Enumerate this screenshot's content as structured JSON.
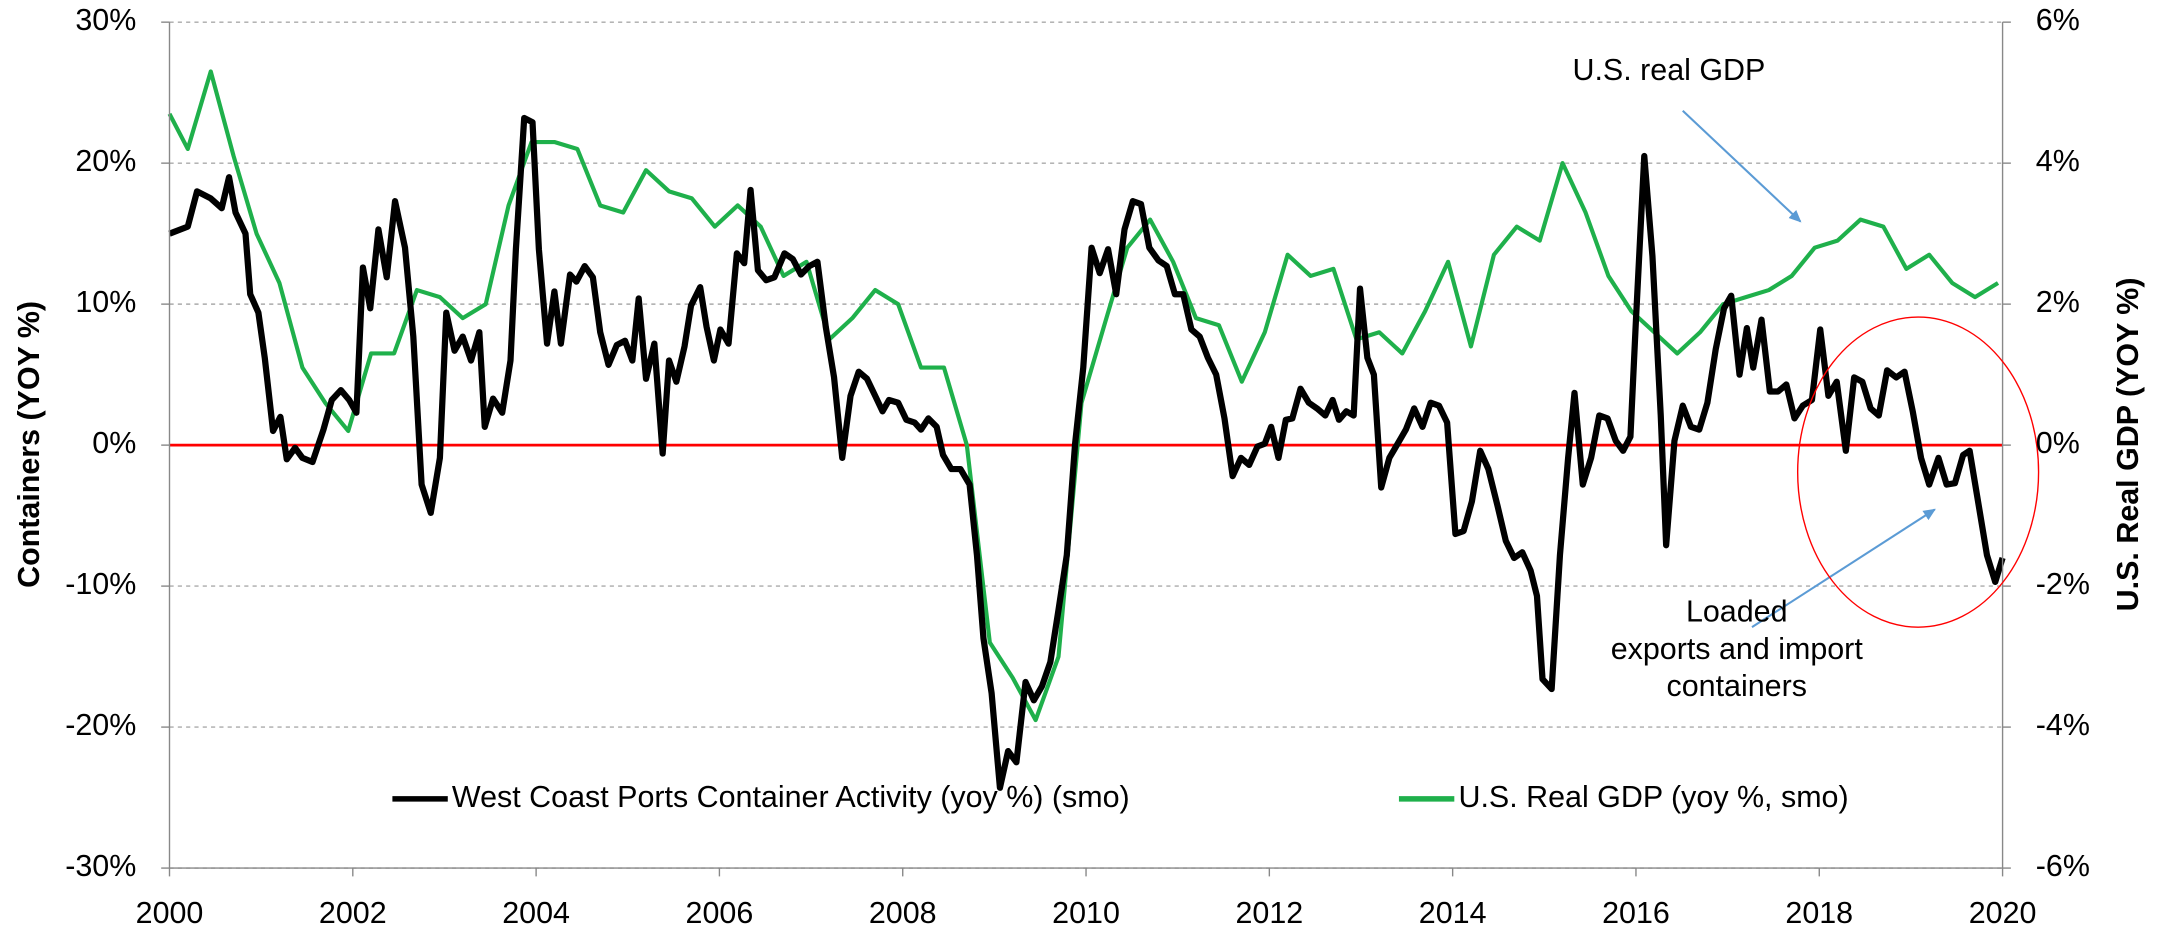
{
  "chart_data": {
    "type": "line",
    "y_label": "Containers (YOY %)",
    "y2_label": "U.S. Real GDP (YOY %)",
    "xlim": [
      2000,
      2020
    ],
    "xticks": [
      2000,
      2002,
      2004,
      2006,
      2008,
      2010,
      2012,
      2014,
      2016,
      2018,
      2020
    ],
    "ylim": [
      -30,
      30
    ],
    "yticks": [
      {
        "value": -30,
        "label": "-30%"
      },
      {
        "value": -20,
        "label": "-20%"
      },
      {
        "value": -10,
        "label": "-10%"
      },
      {
        "value": 0,
        "label": "0%"
      },
      {
        "value": 10,
        "label": "10%"
      },
      {
        "value": 20,
        "label": "20%"
      },
      {
        "value": 30,
        "label": "30%"
      }
    ],
    "y2lim": [
      -6,
      6
    ],
    "y2ticks": [
      {
        "value": -6,
        "label": "-6%"
      },
      {
        "value": -4,
        "label": "-4%"
      },
      {
        "value": -2,
        "label": "-2%"
      },
      {
        "value": 0,
        "label": "0%"
      },
      {
        "value": 2,
        "label": "2%"
      },
      {
        "value": 4,
        "label": "4%"
      },
      {
        "value": 6,
        "label": "6%"
      }
    ],
    "grid": true,
    "zero_line_color": "#ff0000",
    "legend": "lower center",
    "annotations": [
      {
        "lines": [
          "U.S. real GDP"
        ]
      },
      {
        "lines": [
          "Loaded",
          "exports and import",
          "containers"
        ]
      }
    ],
    "series": [
      {
        "name": "West Coast Ports Container Activity (yoy %) (smo)",
        "color": "#000000",
        "axis": "y",
        "x": [
          2000.0,
          2000.2,
          2000.3,
          2000.45,
          2000.57,
          2000.65,
          2000.72,
          2000.83,
          2000.88,
          2000.97,
          2001.04,
          2001.13,
          2001.21,
          2001.28,
          2001.37,
          2001.45,
          2001.56,
          2001.68,
          2001.77,
          2001.87,
          2001.96,
          2002.04,
          2002.11,
          2002.19,
          2002.28,
          2002.37,
          2002.46,
          2002.57,
          2002.66,
          2002.75,
          2002.85,
          2002.95,
          2003.02,
          2003.11,
          2003.2,
          2003.29,
          2003.38,
          2003.44,
          2003.53,
          2003.63,
          2003.72,
          2003.78,
          2003.87,
          2003.96,
          2004.03,
          2004.12,
          2004.2,
          2004.27,
          2004.37,
          2004.44,
          2004.53,
          2004.62,
          2004.7,
          2004.79,
          2004.88,
          2004.97,
          2005.05,
          2005.12,
          2005.2,
          2005.29,
          2005.38,
          2005.45,
          2005.53,
          2005.62,
          2005.69,
          2005.79,
          2005.86,
          2005.94,
          2006.01,
          2006.1,
          2006.19,
          2006.27,
          2006.34,
          2006.42,
          2006.51,
          2006.6,
          2006.71,
          2006.8,
          2006.89,
          2006.98,
          2007.07,
          2007.16,
          2007.25,
          2007.34,
          2007.43,
          2007.52,
          2007.61,
          2007.7,
          2007.78,
          2007.85,
          2007.95,
          2008.04,
          2008.13,
          2008.2,
          2008.28,
          2008.37,
          2008.44,
          2008.53,
          2008.63,
          2008.73,
          2008.81,
          2008.88,
          2008.97,
          2009.06,
          2009.15,
          2009.24,
          2009.34,
          2009.43,
          2009.52,
          2009.61,
          2009.7,
          2009.79,
          2009.88,
          2009.97,
          2010.06,
          2010.15,
          2010.24,
          2010.33,
          2010.42,
          2010.51,
          2010.6,
          2010.69,
          2010.79,
          2010.88,
          2010.97,
          2011.06,
          2011.15,
          2011.24,
          2011.33,
          2011.42,
          2011.51,
          2011.6,
          2011.69,
          2011.78,
          2011.87,
          2011.95,
          2012.02,
          2012.1,
          2012.18,
          2012.25,
          2012.34,
          2012.43,
          2012.52,
          2012.61,
          2012.69,
          2012.76,
          2012.84,
          2012.92,
          2012.99,
          2013.07,
          2013.14,
          2013.22,
          2013.31,
          2013.4,
          2013.49,
          2013.58,
          2013.67,
          2013.76,
          2013.85,
          2013.94,
          2014.03,
          2014.12,
          2014.21,
          2014.3,
          2014.39,
          2014.49,
          2014.58,
          2014.67,
          2014.76,
          2014.85,
          2014.92,
          2014.98,
          2015.08,
          2015.17,
          2015.26,
          2015.33,
          2015.42,
          2015.51,
          2015.6,
          2015.69,
          2015.78,
          2015.86,
          2015.94,
          2016.0,
          2016.09,
          2016.18,
          2016.27,
          2016.33,
          2016.42,
          2016.51,
          2016.6,
          2016.69,
          2016.78,
          2016.87,
          2016.96,
          2017.04,
          2017.13,
          2017.21,
          2017.28,
          2017.37,
          2017.46,
          2017.55,
          2017.64,
          2017.73,
          2017.82,
          2017.92,
          2018.01,
          2018.1,
          2018.19,
          2018.29,
          2018.38,
          2018.47,
          2018.56,
          2018.65,
          2018.74,
          2018.84,
          2018.93,
          2019.02,
          2019.11,
          2019.2,
          2019.3,
          2019.39,
          2019.48,
          2019.57,
          2019.64,
          2019.74,
          2019.83,
          2019.92,
          2020.0
        ],
        "values": [
          15,
          15.5,
          18,
          17.5,
          16.8,
          19,
          16.5,
          15,
          10.7,
          9.4,
          6.2,
          1.0,
          2,
          -1,
          -0.2,
          -0.9,
          -1.2,
          1.1,
          3.2,
          3.9,
          3.2,
          2.3,
          12.6,
          9.7,
          15.3,
          11.9,
          17.3,
          14,
          7.7,
          -2.8,
          -4.8,
          -0.9,
          9.4,
          6.7,
          7.7,
          6,
          8,
          1.3,
          3.3,
          2.3,
          6,
          13.9,
          23.2,
          22.9,
          13.9,
          7.2,
          10.9,
          7.2,
          12.1,
          11.6,
          12.7,
          11.9,
          8,
          5.7,
          7.1,
          7.4,
          6,
          10.4,
          4.7,
          7.2,
          -0.6,
          6,
          4.5,
          7,
          9.9,
          11.2,
          8.4,
          6,
          8.2,
          7.2,
          13.6,
          12.9,
          18.1,
          12.4,
          11.7,
          11.9,
          13.6,
          13.2,
          12.1,
          12.7,
          13,
          8.4,
          4.8,
          -0.9,
          3.5,
          5.2,
          4.7,
          3.5,
          2.4,
          3.2,
          3,
          1.8,
          1.6,
          1.1,
          1.9,
          1.3,
          -0.7,
          -1.7,
          -1.7,
          -2.8,
          -7.8,
          -13.7,
          -17.6,
          -24.3,
          -21.7,
          -22.5,
          -16.8,
          -18.1,
          -17.1,
          -15.4,
          -11.7,
          -7.8,
          0.1,
          5.5,
          14,
          12.2,
          13.9,
          10.7,
          15.3,
          17.3,
          17.1,
          14,
          13.1,
          12.7,
          10.7,
          10.7,
          8.2,
          7.7,
          6.2,
          5,
          1.9,
          -2.2,
          -0.9,
          -1.4,
          -0.1,
          0.1,
          1.3,
          -0.9,
          1.8,
          1.9,
          4,
          3,
          2.6,
          2.1,
          3.2,
          1.8,
          2.4,
          2.1,
          11.1,
          6.2,
          5,
          -3,
          -0.9,
          0.1,
          1.1,
          2.6,
          1.3,
          3,
          2.8,
          1.6,
          -6.3,
          -6.1,
          -4,
          -0.4,
          -1.7,
          -4.3,
          -6.8,
          -8,
          -7.6,
          -8.9,
          -10.7,
          -16.6,
          -17.3,
          -7.8,
          -0.9,
          3.7,
          -2.8,
          -0.9,
          2.1,
          1.9,
          0.3,
          -0.4,
          0.6,
          8.9,
          20.5,
          13.4,
          2.1,
          -7.1,
          0.3,
          2.8,
          1.3,
          1.1,
          3,
          6.8,
          9.7,
          10.6,
          5,
          8.3,
          5.5,
          8.9,
          3.8,
          3.8,
          4.3,
          1.9,
          2.8,
          3.2,
          8.2,
          3.5,
          4.5,
          -0.4,
          4.8,
          4.5,
          2.6,
          2.1,
          5.3,
          4.8,
          5.2,
          2.4,
          -0.9,
          -2.8,
          -0.9,
          -2.8,
          -2.7,
          -0.7,
          -0.4,
          -4.3,
          -7.8,
          -9.7,
          -8
        ]
      },
      {
        "name": "U.S. Real GDP (yoy %, smo)",
        "color": "#1fb04b",
        "axis": "y2",
        "x": [
          2000.0,
          2000.2,
          2000.45,
          2000.7,
          2000.95,
          2001.2,
          2001.45,
          2001.7,
          2001.95,
          2002.2,
          2002.45,
          2002.7,
          2002.95,
          2003.2,
          2003.45,
          2003.7,
          2003.95,
          2004.2,
          2004.45,
          2004.7,
          2004.95,
          2005.2,
          2005.45,
          2005.7,
          2005.95,
          2006.2,
          2006.45,
          2006.7,
          2006.95,
          2007.2,
          2007.45,
          2007.7,
          2007.95,
          2008.2,
          2008.45,
          2008.7,
          2008.95,
          2009.2,
          2009.45,
          2009.7,
          2009.95,
          2010.2,
          2010.45,
          2010.7,
          2010.95,
          2011.2,
          2011.45,
          2011.7,
          2011.95,
          2012.2,
          2012.45,
          2012.7,
          2012.95,
          2013.2,
          2013.45,
          2013.7,
          2013.95,
          2014.2,
          2014.45,
          2014.7,
          2014.95,
          2015.2,
          2015.45,
          2015.7,
          2015.95,
          2016.2,
          2016.45,
          2016.7,
          2016.95,
          2017.2,
          2017.45,
          2017.7,
          2017.95,
          2018.2,
          2018.45,
          2018.7,
          2018.95,
          2019.2,
          2019.45,
          2019.7,
          2019.95
        ],
        "values": [
          4.7,
          4.2,
          5.3,
          4.1,
          3.0,
          2.3,
          1.1,
          0.6,
          0.2,
          1.3,
          1.3,
          2.2,
          2.1,
          1.8,
          2.0,
          3.4,
          4.3,
          4.3,
          4.2,
          3.4,
          3.3,
          3.9,
          3.6,
          3.5,
          3.1,
          3.4,
          3.1,
          2.4,
          2.6,
          1.5,
          1.8,
          2.2,
          2.0,
          1.1,
          1.1,
          0,
          -2.8,
          -3.3,
          -3.9,
          -3.0,
          0.6,
          1.7,
          2.8,
          3.2,
          2.6,
          1.8,
          1.7,
          0.9,
          1.6,
          2.7,
          2.4,
          2.5,
          1.5,
          1.6,
          1.3,
          1.9,
          2.6,
          1.4,
          2.7,
          3.1,
          2.9,
          4.0,
          3.3,
          2.4,
          1.9,
          1.6,
          1.3,
          1.6,
          2.0,
          2.1,
          2.2,
          2.4,
          2.8,
          2.9,
          3.2,
          3.1,
          2.5,
          2.7,
          2.3,
          2.1,
          2.3
        ]
      }
    ]
  }
}
